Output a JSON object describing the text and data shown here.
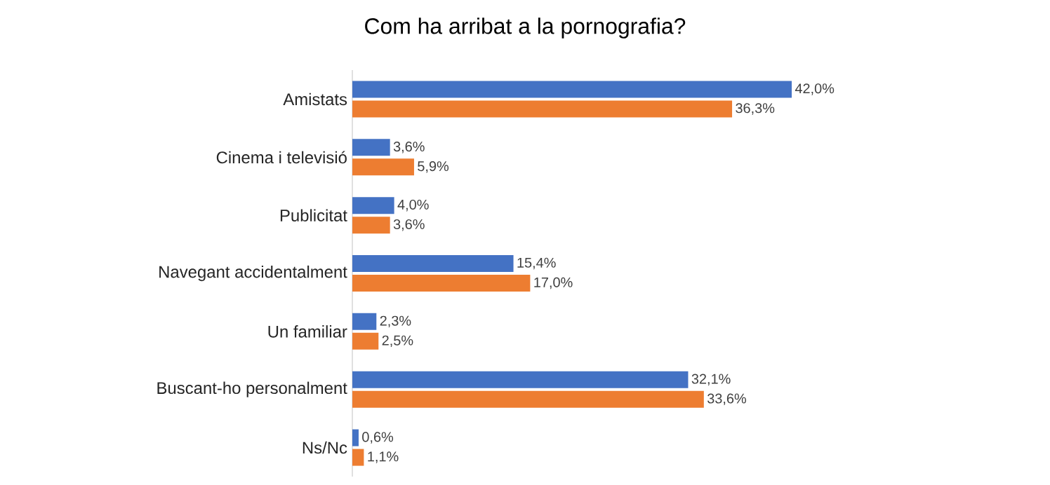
{
  "chart_data": {
    "type": "bar",
    "orientation": "horizontal",
    "title": "Com ha arribat a la pornografia?",
    "categories": [
      "Amistats",
      "Cinema i televisió",
      "Publicitat",
      "Navegant accidentalment",
      "Un familiar",
      "Buscant-ho personalment",
      "Ns/Nc"
    ],
    "series": [
      {
        "color": "#4472c4",
        "values": [
          42.0,
          3.6,
          4.0,
          15.4,
          2.3,
          32.1,
          0.6
        ],
        "value_labels": [
          "42,0%",
          "3,6%",
          "4,0%",
          "15,4%",
          "2,3%",
          "32,1%",
          "0,6%"
        ]
      },
      {
        "color": "#ed7d31",
        "values": [
          36.3,
          5.9,
          3.6,
          17.0,
          2.5,
          33.6,
          1.1
        ],
        "value_labels": [
          "36,3%",
          "5,9%",
          "3,6%",
          "17,0%",
          "2,5%",
          "33,6%",
          "1,1%"
        ]
      }
    ]
  }
}
